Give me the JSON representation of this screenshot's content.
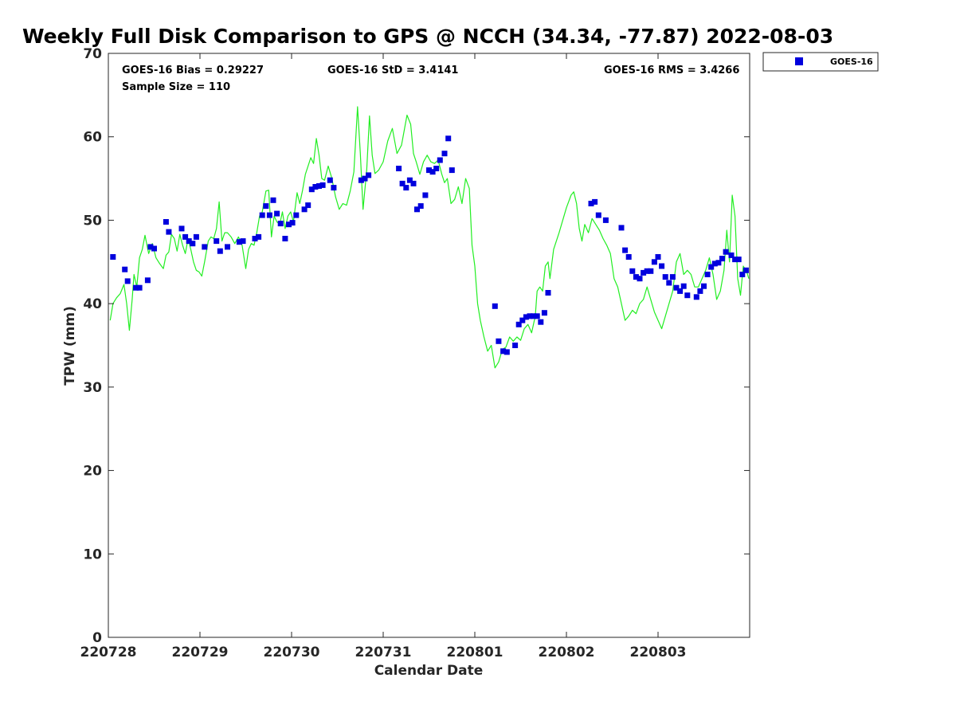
{
  "chart_data": {
    "type": "scatter+line",
    "title": "Weekly Full Disk Comparison to GPS @ NCCH (34.34, -77.87) 2022-08-03",
    "xlabel": "Calendar Date",
    "ylabel": "TPW (mm)",
    "xlim": [
      0,
      7
    ],
    "ylim": [
      0,
      70
    ],
    "x_ticks": [
      {
        "value": 0,
        "label": "220728"
      },
      {
        "value": 1,
        "label": "220729"
      },
      {
        "value": 2,
        "label": "220730"
      },
      {
        "value": 3,
        "label": "220731"
      },
      {
        "value": 4,
        "label": "220801"
      },
      {
        "value": 5,
        "label": "220802"
      },
      {
        "value": 6,
        "label": "220803"
      }
    ],
    "y_ticks": [
      0,
      10,
      20,
      30,
      40,
      50,
      60,
      70
    ],
    "stats": {
      "bias": "GOES-16 Bias = 0.29227",
      "std": "GOES-16 StD = 3.4141",
      "rms": "GOES-16 RMS = 3.4266",
      "sample": "Sample Size = 110"
    },
    "legend": {
      "position": "top-right",
      "label": "GOES-16",
      "color": "#0000dd"
    },
    "gps_line": {
      "name": "GPS",
      "color": "#22ee22",
      "points": [
        [
          0.02,
          38.0
        ],
        [
          0.05,
          40.0
        ],
        [
          0.09,
          40.7
        ],
        [
          0.13,
          41.2
        ],
        [
          0.17,
          42.3
        ],
        [
          0.2,
          40.0
        ],
        [
          0.23,
          36.8
        ],
        [
          0.26,
          40.5
        ],
        [
          0.28,
          43.5
        ],
        [
          0.31,
          42.0
        ],
        [
          0.34,
          45.5
        ],
        [
          0.37,
          46.5
        ],
        [
          0.4,
          48.2
        ],
        [
          0.44,
          46.0
        ],
        [
          0.48,
          47.2
        ],
        [
          0.52,
          45.5
        ],
        [
          0.56,
          44.8
        ],
        [
          0.6,
          44.2
        ],
        [
          0.63,
          45.8
        ],
        [
          0.66,
          46.2
        ],
        [
          0.69,
          48.3
        ],
        [
          0.72,
          47.8
        ],
        [
          0.75,
          46.3
        ],
        [
          0.78,
          48.3
        ],
        [
          0.81,
          47.0
        ],
        [
          0.84,
          46.0
        ],
        [
          0.87,
          47.8
        ],
        [
          0.9,
          46.5
        ],
        [
          0.93,
          45.0
        ],
        [
          0.96,
          44.0
        ],
        [
          0.99,
          43.8
        ],
        [
          1.02,
          43.3
        ],
        [
          1.05,
          45.0
        ],
        [
          1.09,
          47.5
        ],
        [
          1.12,
          48.0
        ],
        [
          1.15,
          47.8
        ],
        [
          1.18,
          49.0
        ],
        [
          1.21,
          52.2
        ],
        [
          1.24,
          47.5
        ],
        [
          1.27,
          48.5
        ],
        [
          1.3,
          48.5
        ],
        [
          1.34,
          48.0
        ],
        [
          1.38,
          47.2
        ],
        [
          1.42,
          48.0
        ],
        [
          1.46,
          47.0
        ],
        [
          1.5,
          44.2
        ],
        [
          1.53,
          46.5
        ],
        [
          1.56,
          47.2
        ],
        [
          1.59,
          47.0
        ],
        [
          1.62,
          48.5
        ],
        [
          1.65,
          50.5
        ],
        [
          1.68,
          51.0
        ],
        [
          1.72,
          53.5
        ],
        [
          1.75,
          53.6
        ],
        [
          1.78,
          48.0
        ],
        [
          1.81,
          50.5
        ],
        [
          1.84,
          49.8
        ],
        [
          1.87,
          49.5
        ],
        [
          1.9,
          51.0
        ],
        [
          1.93,
          49.0
        ],
        [
          1.96,
          50.5
        ],
        [
          1.99,
          51.0
        ],
        [
          2.02,
          49.8
        ],
        [
          2.06,
          53.3
        ],
        [
          2.09,
          52.0
        ],
        [
          2.12,
          53.6
        ],
        [
          2.15,
          55.5
        ],
        [
          2.18,
          56.5
        ],
        [
          2.21,
          57.5
        ],
        [
          2.24,
          56.8
        ],
        [
          2.27,
          59.8
        ],
        [
          2.3,
          57.8
        ],
        [
          2.33,
          55.0
        ],
        [
          2.36,
          54.8
        ],
        [
          2.4,
          56.5
        ],
        [
          2.44,
          55.0
        ],
        [
          2.48,
          52.8
        ],
        [
          2.52,
          51.3
        ],
        [
          2.56,
          52.0
        ],
        [
          2.6,
          51.8
        ],
        [
          2.64,
          53.5
        ],
        [
          2.68,
          55.8
        ],
        [
          2.72,
          63.6
        ],
        [
          2.75,
          58.0
        ],
        [
          2.78,
          51.3
        ],
        [
          2.82,
          56.0
        ],
        [
          2.85,
          62.5
        ],
        [
          2.88,
          57.8
        ],
        [
          2.91,
          55.6
        ],
        [
          2.95,
          56.0
        ],
        [
          3.0,
          57.0
        ],
        [
          3.05,
          59.5
        ],
        [
          3.1,
          61.0
        ],
        [
          3.15,
          58.0
        ],
        [
          3.2,
          59.0
        ],
        [
          3.26,
          62.6
        ],
        [
          3.3,
          61.5
        ],
        [
          3.33,
          58.0
        ],
        [
          3.36,
          57.0
        ],
        [
          3.4,
          55.5
        ],
        [
          3.44,
          57.0
        ],
        [
          3.48,
          57.8
        ],
        [
          3.52,
          57.0
        ],
        [
          3.56,
          56.8
        ],
        [
          3.6,
          57.2
        ],
        [
          3.64,
          55.5
        ],
        [
          3.67,
          54.5
        ],
        [
          3.7,
          55.0
        ],
        [
          3.74,
          52.0
        ],
        [
          3.78,
          52.5
        ],
        [
          3.82,
          54.0
        ],
        [
          3.86,
          52.0
        ],
        [
          3.9,
          55.0
        ],
        [
          3.94,
          53.8
        ],
        [
          3.97,
          47.0
        ],
        [
          4.0,
          44.5
        ],
        [
          4.03,
          40.0
        ],
        [
          4.06,
          38.0
        ],
        [
          4.1,
          36.0
        ],
        [
          4.14,
          34.3
        ],
        [
          4.18,
          35.0
        ],
        [
          4.22,
          32.3
        ],
        [
          4.26,
          33.0
        ],
        [
          4.3,
          34.5
        ],
        [
          4.34,
          34.8
        ],
        [
          4.38,
          36.0
        ],
        [
          4.42,
          35.5
        ],
        [
          4.46,
          36.0
        ],
        [
          4.5,
          35.6
        ],
        [
          4.54,
          37.0
        ],
        [
          4.58,
          37.5
        ],
        [
          4.62,
          36.5
        ],
        [
          4.66,
          38.5
        ],
        [
          4.68,
          41.5
        ],
        [
          4.71,
          42.0
        ],
        [
          4.74,
          41.5
        ],
        [
          4.77,
          44.5
        ],
        [
          4.8,
          45.0
        ],
        [
          4.82,
          43.0
        ],
        [
          4.86,
          46.5
        ],
        [
          4.92,
          48.5
        ],
        [
          5.0,
          51.5
        ],
        [
          5.05,
          53.0
        ],
        [
          5.08,
          53.4
        ],
        [
          5.11,
          52.0
        ],
        [
          5.14,
          49.0
        ],
        [
          5.17,
          47.5
        ],
        [
          5.2,
          49.5
        ],
        [
          5.24,
          48.5
        ],
        [
          5.28,
          50.2
        ],
        [
          5.32,
          49.5
        ],
        [
          5.36,
          48.8
        ],
        [
          5.4,
          47.8
        ],
        [
          5.44,
          47.0
        ],
        [
          5.48,
          46.0
        ],
        [
          5.52,
          43.0
        ],
        [
          5.56,
          42.0
        ],
        [
          5.6,
          40.0
        ],
        [
          5.64,
          38.0
        ],
        [
          5.68,
          38.5
        ],
        [
          5.72,
          39.2
        ],
        [
          5.76,
          38.8
        ],
        [
          5.8,
          40.0
        ],
        [
          5.84,
          40.5
        ],
        [
          5.88,
          42.0
        ],
        [
          5.92,
          40.5
        ],
        [
          5.96,
          39.0
        ],
        [
          6.0,
          38.0
        ],
        [
          6.04,
          37.0
        ],
        [
          6.08,
          38.5
        ],
        [
          6.12,
          40.0
        ],
        [
          6.16,
          41.5
        ],
        [
          6.2,
          45.0
        ],
        [
          6.24,
          46.0
        ],
        [
          6.28,
          43.5
        ],
        [
          6.32,
          44.0
        ],
        [
          6.36,
          43.5
        ],
        [
          6.4,
          42.0
        ],
        [
          6.44,
          42.0
        ],
        [
          6.48,
          43.0
        ],
        [
          6.52,
          44.0
        ],
        [
          6.56,
          45.5
        ],
        [
          6.6,
          43.5
        ],
        [
          6.64,
          40.5
        ],
        [
          6.68,
          41.5
        ],
        [
          6.72,
          44.0
        ],
        [
          6.75,
          48.8
        ],
        [
          6.78,
          45.0
        ],
        [
          6.81,
          53.0
        ],
        [
          6.84,
          50.5
        ],
        [
          6.87,
          43.0
        ],
        [
          6.9,
          41.0
        ],
        [
          6.93,
          44.5
        ],
        [
          6.97,
          43.8
        ],
        [
          6.99,
          43.0
        ]
      ]
    },
    "goes_points": {
      "name": "GOES-16",
      "color": "#0000dd",
      "points": [
        [
          0.05,
          45.6
        ],
        [
          0.18,
          44.1
        ],
        [
          0.21,
          42.7
        ],
        [
          0.3,
          41.9
        ],
        [
          0.34,
          41.9
        ],
        [
          0.43,
          42.8
        ],
        [
          0.46,
          46.8
        ],
        [
          0.5,
          46.6
        ],
        [
          0.63,
          49.8
        ],
        [
          0.66,
          48.6
        ],
        [
          0.8,
          49.0
        ],
        [
          0.84,
          48.0
        ],
        [
          0.88,
          47.5
        ],
        [
          0.92,
          47.2
        ],
        [
          0.96,
          48.0
        ],
        [
          1.05,
          46.8
        ],
        [
          1.18,
          47.5
        ],
        [
          1.22,
          46.3
        ],
        [
          1.3,
          46.8
        ],
        [
          1.43,
          47.4
        ],
        [
          1.47,
          47.5
        ],
        [
          1.6,
          47.8
        ],
        [
          1.64,
          48.0
        ],
        [
          1.68,
          50.6
        ],
        [
          1.72,
          51.7
        ],
        [
          1.76,
          50.6
        ],
        [
          1.8,
          52.4
        ],
        [
          1.84,
          50.8
        ],
        [
          1.88,
          49.6
        ],
        [
          1.93,
          47.8
        ],
        [
          1.97,
          49.5
        ],
        [
          2.01,
          49.7
        ],
        [
          2.05,
          50.6
        ],
        [
          2.14,
          51.3
        ],
        [
          2.18,
          51.8
        ],
        [
          2.22,
          53.7
        ],
        [
          2.26,
          54.0
        ],
        [
          2.3,
          54.1
        ],
        [
          2.34,
          54.2
        ],
        [
          2.42,
          54.8
        ],
        [
          2.46,
          53.9
        ],
        [
          2.76,
          54.8
        ],
        [
          2.8,
          55.0
        ],
        [
          2.84,
          55.4
        ],
        [
          3.17,
          56.2
        ],
        [
          3.21,
          54.4
        ],
        [
          3.25,
          53.9
        ],
        [
          3.29,
          54.8
        ],
        [
          3.33,
          54.4
        ],
        [
          3.37,
          51.3
        ],
        [
          3.41,
          51.7
        ],
        [
          3.46,
          53.0
        ],
        [
          3.5,
          56.0
        ],
        [
          3.54,
          55.8
        ],
        [
          3.58,
          56.2
        ],
        [
          3.62,
          57.2
        ],
        [
          3.67,
          58.0
        ],
        [
          3.71,
          59.8
        ],
        [
          3.75,
          56.0
        ],
        [
          4.22,
          39.7
        ],
        [
          4.26,
          35.5
        ],
        [
          4.31,
          34.3
        ],
        [
          4.35,
          34.2
        ],
        [
          4.44,
          35.0
        ],
        [
          4.48,
          37.5
        ],
        [
          4.52,
          38.0
        ],
        [
          4.56,
          38.4
        ],
        [
          4.6,
          38.5
        ],
        [
          4.64,
          38.5
        ],
        [
          4.68,
          38.5
        ],
        [
          4.72,
          37.8
        ],
        [
          4.76,
          38.9
        ],
        [
          4.8,
          41.3
        ],
        [
          5.27,
          52.0
        ],
        [
          5.31,
          52.2
        ],
        [
          5.35,
          50.6
        ],
        [
          5.43,
          50.0
        ],
        [
          5.6,
          49.1
        ],
        [
          5.64,
          46.4
        ],
        [
          5.68,
          45.6
        ],
        [
          5.72,
          43.9
        ],
        [
          5.76,
          43.2
        ],
        [
          5.8,
          43.0
        ],
        [
          5.84,
          43.7
        ],
        [
          5.88,
          43.9
        ],
        [
          5.92,
          43.9
        ],
        [
          5.96,
          45.0
        ],
        [
          6.0,
          45.6
        ],
        [
          6.04,
          44.5
        ],
        [
          6.08,
          43.2
        ],
        [
          6.12,
          42.5
        ],
        [
          6.16,
          43.2
        ],
        [
          6.2,
          41.9
        ],
        [
          6.24,
          41.5
        ],
        [
          6.28,
          42.1
        ],
        [
          6.32,
          41.0
        ],
        [
          6.42,
          40.8
        ],
        [
          6.46,
          41.5
        ],
        [
          6.5,
          42.1
        ],
        [
          6.54,
          43.5
        ],
        [
          6.58,
          44.4
        ],
        [
          6.62,
          44.8
        ],
        [
          6.66,
          44.9
        ],
        [
          6.7,
          45.4
        ],
        [
          6.74,
          46.2
        ],
        [
          6.8,
          45.8
        ],
        [
          6.84,
          45.3
        ],
        [
          6.88,
          45.3
        ],
        [
          6.92,
          43.5
        ],
        [
          6.96,
          44.0
        ]
      ]
    }
  }
}
